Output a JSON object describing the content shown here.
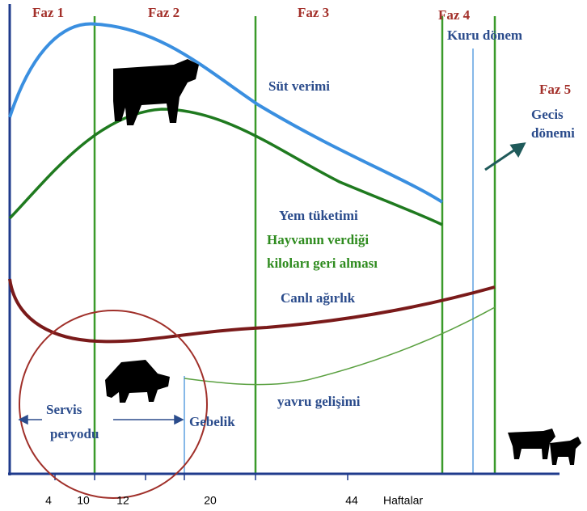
{
  "phases": [
    "Faz 1",
    "Faz 2",
    "Faz 3",
    "Faz 4",
    "Faz 5"
  ],
  "dry_period": "Kuru dönem",
  "transition": [
    "Gecis",
    "dönemi"
  ],
  "curves": {
    "milk": "Süt verimi",
    "feed": "Yem tüketimi",
    "recovery": [
      "Hayvanın verdiği",
      "kiloları geri alması"
    ],
    "weight": "Canlı ağırlık",
    "calf": "yavru gelişimi"
  },
  "service": [
    "Servis",
    "peryodu"
  ],
  "pregnancy": "Gebelik",
  "x_axis": {
    "labels": [
      "4",
      "10",
      "12",
      "20",
      "44"
    ],
    "title": "Haftalar"
  }
}
